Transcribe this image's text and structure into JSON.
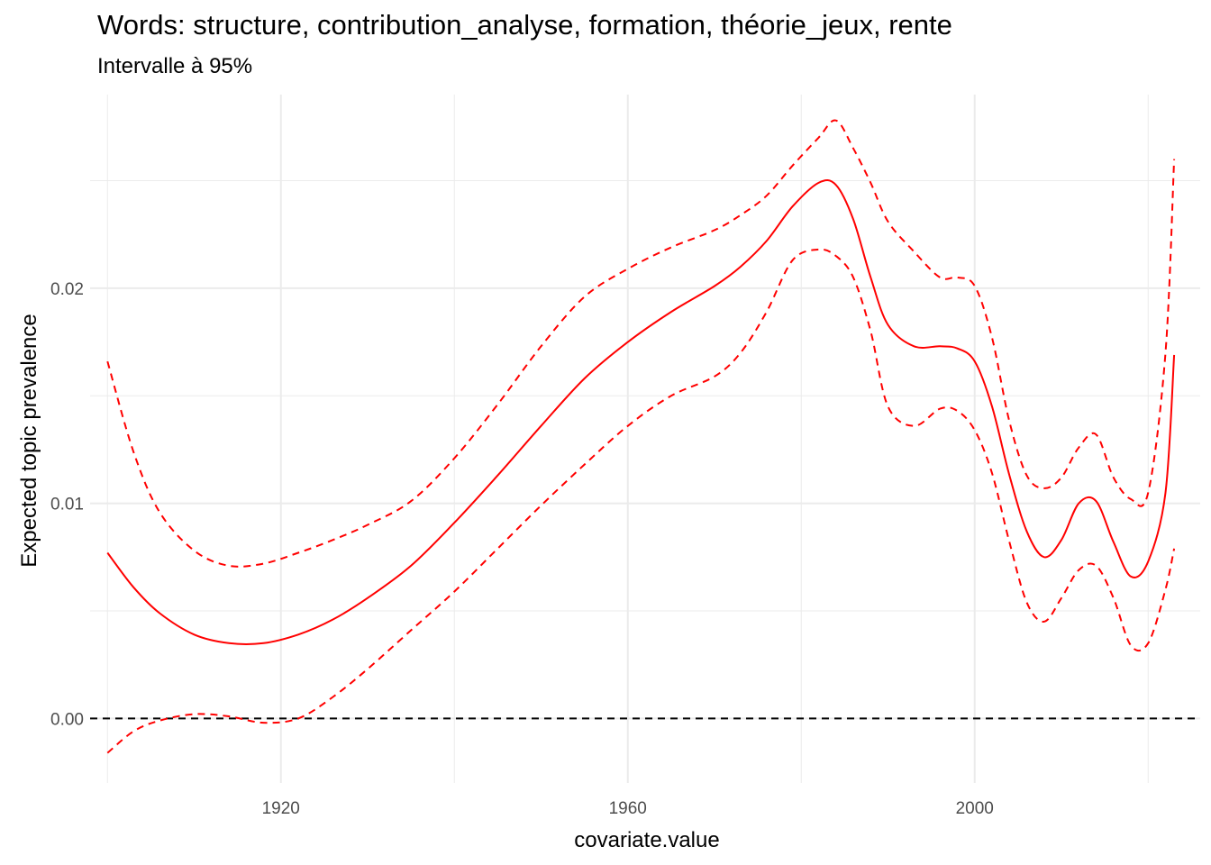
{
  "chart_data": {
    "type": "line",
    "title": "Words: structure, contribution_analyse, formation, théorie_jeux, rente",
    "subtitle": "Intervalle à 95%",
    "xlabel": "covariate.value",
    "ylabel": "Expected topic prevalence",
    "xlim": [
      1898,
      2026
    ],
    "ylim": [
      -0.003,
      0.029
    ],
    "x_ticks": [
      1920,
      1960,
      2000
    ],
    "x_tick_labels": [
      "1920",
      "1960",
      "2000"
    ],
    "y_ticks": [
      0.0,
      0.01,
      0.02
    ],
    "y_tick_labels": [
      "0.00",
      "0.01",
      "0.02"
    ],
    "grid": true,
    "reference_line": {
      "y": 0,
      "style": "dashed",
      "color": "#000000"
    },
    "series_color": "#ff0000",
    "x": [
      1900,
      1903,
      1906,
      1910,
      1914,
      1918,
      1922,
      1926,
      1930,
      1935,
      1940,
      1945,
      1950,
      1955,
      1960,
      1965,
      1970,
      1973,
      1976,
      1979,
      1982,
      1984,
      1986,
      1988,
      1990,
      1993,
      1996,
      1998,
      2000,
      2002,
      2004,
      2006,
      2008,
      2010,
      2012,
      2014,
      2016,
      2018,
      2020,
      2022,
      2023
    ],
    "series": [
      {
        "name": "",
        "style": "solid",
        "values": [
          0.0077,
          0.0061,
          0.0049,
          0.0039,
          0.0035,
          0.0035,
          0.0039,
          0.0046,
          0.0056,
          0.0071,
          0.0091,
          0.0113,
          0.0136,
          0.0158,
          0.0175,
          0.0189,
          0.0201,
          0.021,
          0.0222,
          0.0238,
          0.0249,
          0.0248,
          0.0232,
          0.0205,
          0.0183,
          0.0173,
          0.0173,
          0.0172,
          0.0166,
          0.0145,
          0.0113,
          0.0087,
          0.0075,
          0.0083,
          0.01,
          0.0101,
          0.0082,
          0.0066,
          0.0073,
          0.0105,
          0.0169
        ]
      },
      {
        "name": "",
        "style": "dashed",
        "values": [
          0.0166,
          0.0124,
          0.0096,
          0.0078,
          0.0071,
          0.0072,
          0.0077,
          0.0083,
          0.009,
          0.0101,
          0.0121,
          0.0146,
          0.0173,
          0.0196,
          0.0209,
          0.0219,
          0.0227,
          0.0234,
          0.0243,
          0.0257,
          0.027,
          0.0278,
          0.0265,
          0.0249,
          0.0231,
          0.0217,
          0.0205,
          0.0205,
          0.0201,
          0.0177,
          0.0138,
          0.0113,
          0.0107,
          0.0112,
          0.0126,
          0.0132,
          0.0112,
          0.0102,
          0.0105,
          0.017,
          0.026
        ]
      },
      {
        "name": "",
        "style": "dashed",
        "values": [
          -0.0016,
          -0.0006,
          -0.0001,
          0.0002,
          0.0001,
          -0.0002,
          0.0,
          0.001,
          0.0023,
          0.0041,
          0.0059,
          0.0079,
          0.0099,
          0.0118,
          0.0136,
          0.015,
          0.0159,
          0.017,
          0.0189,
          0.0213,
          0.0218,
          0.0215,
          0.0205,
          0.018,
          0.0145,
          0.0136,
          0.0144,
          0.0143,
          0.0134,
          0.0114,
          0.0082,
          0.0054,
          0.0045,
          0.0056,
          0.0069,
          0.0071,
          0.0056,
          0.0034,
          0.0035,
          0.006,
          0.0079
        ]
      }
    ]
  }
}
